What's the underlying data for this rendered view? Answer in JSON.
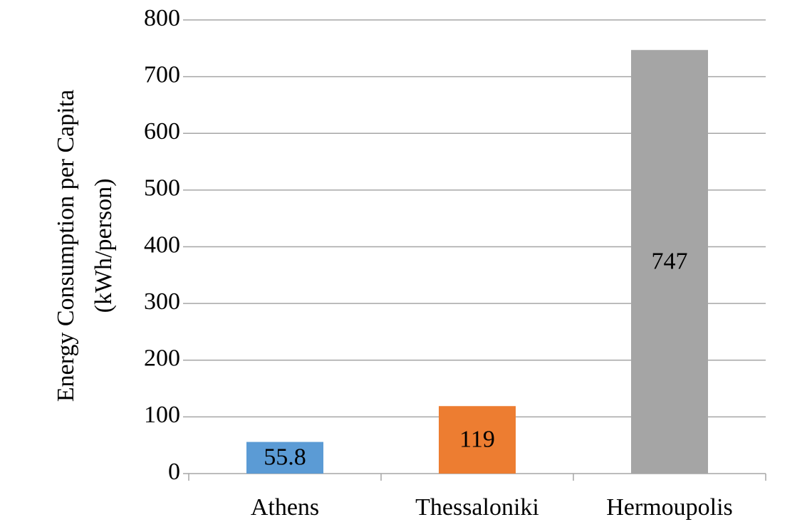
{
  "chart_data": {
    "type": "bar",
    "y_label": [
      "Energy Consumption per Capita",
      "(kWh/person)"
    ],
    "categories": [
      "Athens",
      "Thessaloniki",
      "Hermoupolis"
    ],
    "values": [
      55.8,
      119,
      747
    ],
    "colors": [
      "#5b9bd5",
      "#ed7d31",
      "#a5a5a5"
    ],
    "ylim": [
      0,
      800
    ],
    "yticks": [
      0,
      100,
      200,
      300,
      400,
      500,
      600,
      700,
      800
    ],
    "grid": true,
    "data_labels": true
  }
}
